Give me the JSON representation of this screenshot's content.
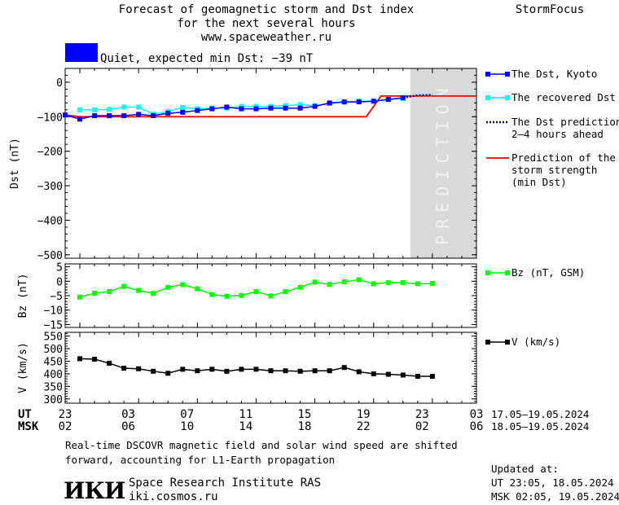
{
  "header": {
    "title_line1": "Forecast of geomagnetic storm and Dst index",
    "title_line2": "for the next several hours",
    "url": "www.spaceweather.ru",
    "brand": "StormFocus",
    "status_text": "Quiet, expected min Dst: −39 nT",
    "status_color": "#0000ff"
  },
  "legend": {
    "dst_kyoto": "The Dst, Kyoto",
    "dst_recovered": "The recovered Dst",
    "dst_prediction_line1": "The Dst prediction",
    "dst_prediction_line2": "2–4 hours ahead",
    "storm_line1": "Prediction of the",
    "storm_line2": "storm strength",
    "storm_line3": "(min Dst)",
    "bz": "Bz (nT, GSM)",
    "v": "V (km/s)"
  },
  "prediction_label": "PREDICTION",
  "time_axis": {
    "ut_label": "UT",
    "msk_label": "MSK",
    "ut_ticks": [
      "23",
      "03",
      "07",
      "11",
      "15",
      "19",
      "23",
      "03"
    ],
    "msk_ticks": [
      "02",
      "06",
      "10",
      "14",
      "18",
      "22",
      "02",
      "06"
    ],
    "ut_range": "17.05–19.05.2024",
    "msk_range": "18.05–19.05.2024"
  },
  "footer": {
    "note_line1": "Real-time DSCOVR magnetic field and solar wind speed are shifted",
    "note_line2": "forward, accounting for L1-Earth propagation",
    "logo": "ИКИ",
    "institute": "Space Research Institute RAS",
    "site": "iki.cosmos.ru",
    "updated_label": "Updated at:",
    "updated_ut": "UT   23:05, 18.05.2024",
    "updated_msk": "MSK 02:05, 19.05.2024"
  },
  "colors": {
    "kyoto": "#0000ff",
    "recovered": "#00ffff",
    "prediction_dotted": "#00008b",
    "storm": "#ff0000",
    "bz": "#00ff00",
    "v": "#000000",
    "prediction_band": "#d9d9d9"
  },
  "chart_data": [
    {
      "type": "line",
      "ylabel": "Dst (nT)",
      "xlim_hours": [
        0,
        28
      ],
      "ylim": [
        -510,
        40
      ],
      "yticks": [
        0,
        -100,
        -200,
        -300,
        -400,
        -500
      ],
      "prediction_band_hours": [
        23.5,
        28
      ],
      "series": [
        {
          "name": "The Dst, Kyoto",
          "x": [
            0,
            1,
            2,
            3,
            4,
            5,
            6,
            7,
            8,
            9,
            10,
            11,
            12,
            13,
            14,
            15,
            16,
            17,
            18,
            19,
            20,
            21,
            22,
            23
          ],
          "values": [
            -95,
            -107,
            -97,
            -97,
            -97,
            -93,
            -97,
            -90,
            -87,
            -82,
            -77,
            -72,
            -77,
            -77,
            -75,
            -75,
            -75,
            -70,
            -60,
            -57,
            -57,
            -55,
            -50,
            -45
          ]
        },
        {
          "name": "The recovered Dst",
          "x": [
            1,
            2,
            3,
            4,
            5,
            6,
            7,
            8,
            9,
            10,
            11,
            12,
            13,
            14,
            15,
            16,
            17,
            18,
            19,
            20,
            21,
            22,
            23
          ],
          "values": [
            -80,
            -80,
            -79,
            -72,
            -72,
            -93,
            -85,
            -73,
            -77,
            -75,
            -75,
            -70,
            -70,
            -70,
            -68,
            -65,
            -68,
            -62,
            -58,
            -55,
            -55,
            -50,
            -48
          ]
        },
        {
          "name": "The Dst prediction 2–4 hours ahead",
          "x": [
            23,
            24,
            25
          ],
          "values": [
            -45,
            -38,
            -37
          ]
        },
        {
          "name": "Prediction of the storm strength (min Dst)",
          "x": [
            0,
            1,
            20.5,
            21.5,
            28
          ],
          "values": [
            -95,
            -100,
            -100,
            -40,
            -40
          ]
        }
      ]
    },
    {
      "type": "line",
      "ylabel": "Bz (nT)",
      "xlim_hours": [
        0,
        28
      ],
      "ylim": [
        -16,
        6
      ],
      "yticks": [
        5,
        0,
        -5,
        -10,
        -15
      ],
      "series": [
        {
          "name": "Bz (nT, GSM)",
          "x": [
            1,
            2,
            3,
            4,
            5,
            6,
            7,
            8,
            9,
            10,
            11,
            12,
            13,
            14,
            15,
            16,
            17,
            18,
            19,
            20,
            21,
            22,
            23,
            24,
            25
          ],
          "values": [
            -5.5,
            -4.2,
            -3.6,
            -1.8,
            -3.2,
            -4.2,
            -2.1,
            -1.2,
            -2.6,
            -4.6,
            -5.2,
            -4.9,
            -3.6,
            -5.1,
            -3.6,
            -2.1,
            -0.3,
            -1.1,
            -0.2,
            0.5,
            -0.9,
            -0.5,
            -0.5,
            -0.9,
            -0.8
          ]
        }
      ]
    },
    {
      "type": "line",
      "ylabel": "V (km/s)",
      "xlim_hours": [
        0,
        28
      ],
      "ylim": [
        283,
        565
      ],
      "yticks": [
        550,
        500,
        450,
        400,
        350,
        300
      ],
      "series": [
        {
          "name": "V (km/s)",
          "x": [
            1,
            2,
            3,
            4,
            5,
            6,
            7,
            8,
            9,
            10,
            11,
            12,
            13,
            14,
            15,
            16,
            17,
            18,
            19,
            20,
            21,
            22,
            23,
            24,
            25
          ],
          "values": [
            460,
            458,
            442,
            422,
            420,
            410,
            402,
            418,
            412,
            418,
            410,
            418,
            418,
            412,
            412,
            410,
            412,
            412,
            425,
            408,
            400,
            398,
            395,
            390,
            390
          ]
        }
      ]
    }
  ]
}
